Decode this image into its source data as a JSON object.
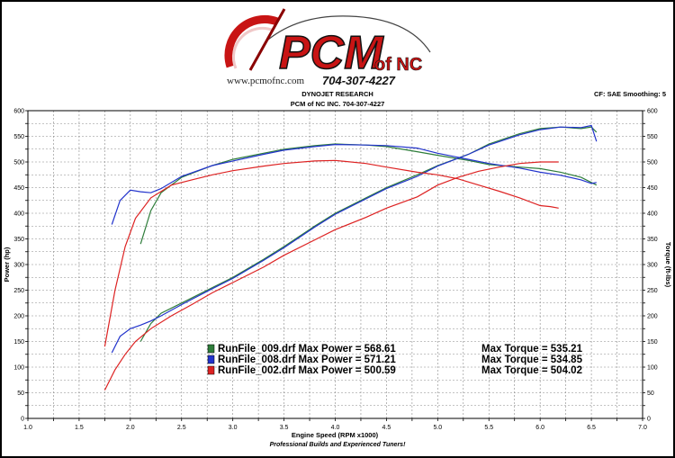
{
  "logo": {
    "wordmark": "PCM",
    "suffix": "of NC",
    "phone": "704-307-4227",
    "url": "www.pcmofnc.com"
  },
  "header": {
    "line1": "DYNOJET RESEARCH",
    "line2": "PCM of NC INC. 704-307-4227",
    "settings": "CF: SAE  Smoothing: 5"
  },
  "footer": "Professional Builds and Experienced Tuners!",
  "colors": {
    "run009": "#2e7d3a",
    "run008": "#2233cc",
    "run002": "#dd2222"
  },
  "chart_data": {
    "type": "line",
    "xlabel": "Engine Speed (RPM x1000)",
    "ylabel_left": "Power (hp)",
    "ylabel_right": "Torque (ft-lbs)",
    "xlim": [
      1.0,
      7.0
    ],
    "ylim": [
      0,
      600
    ],
    "x_ticks": [
      "1.0",
      "1.5",
      "2.0",
      "2.5",
      "3.0",
      "3.5",
      "4.0",
      "4.5",
      "5.0",
      "5.5",
      "6.0",
      "6.5",
      "7.0"
    ],
    "y_ticks": [
      "0",
      "50",
      "100",
      "150",
      "200",
      "250",
      "300",
      "350",
      "400",
      "450",
      "500",
      "550",
      "600"
    ],
    "grid": true,
    "legend": [
      {
        "label": "RunFile_009.drf Max Power = 568.61",
        "torque": "Max Torque = 535.21",
        "color": "#2e7d3a"
      },
      {
        "label": "RunFile_008.drf Max Power = 571.21",
        "torque": "Max Torque = 534.85",
        "color": "#2233cc"
      },
      {
        "label": "RunFile_002.drf Max Power = 500.59",
        "torque": "Max Torque = 504.02",
        "color": "#dd2222"
      }
    ],
    "series": [
      {
        "name": "RunFile_009.drf power",
        "color": "#2e7d3a",
        "x": [
          2.1,
          2.2,
          2.3,
          2.5,
          2.8,
          3.0,
          3.3,
          3.5,
          3.8,
          4.0,
          4.3,
          4.5,
          4.8,
          5.0,
          5.3,
          5.5,
          5.8,
          6.0,
          6.2,
          6.4,
          6.5,
          6.55
        ],
        "y": [
          150,
          185,
          205,
          225,
          255,
          275,
          310,
          335,
          375,
          400,
          430,
          450,
          475,
          493,
          515,
          535,
          555,
          565,
          568,
          565,
          568,
          558
        ]
      },
      {
        "name": "RunFile_009.drf torque",
        "color": "#2e7d3a",
        "x": [
          2.1,
          2.2,
          2.3,
          2.5,
          2.8,
          3.0,
          3.3,
          3.5,
          3.8,
          4.0,
          4.3,
          4.5,
          4.8,
          5.0,
          5.3,
          5.5,
          5.8,
          6.0,
          6.2,
          6.4,
          6.5,
          6.55
        ],
        "y": [
          340,
          405,
          440,
          470,
          493,
          505,
          517,
          525,
          532,
          535,
          533,
          530,
          520,
          513,
          503,
          495,
          490,
          487,
          480,
          470,
          460,
          455
        ]
      },
      {
        "name": "RunFile_008.drf power",
        "color": "#2233cc",
        "x": [
          1.82,
          1.9,
          2.0,
          2.1,
          2.2,
          2.3,
          2.5,
          2.8,
          3.0,
          3.3,
          3.5,
          3.8,
          4.0,
          4.3,
          4.5,
          4.8,
          5.0,
          5.3,
          5.5,
          5.8,
          6.0,
          6.2,
          6.4,
          6.5,
          6.55
        ],
        "y": [
          128,
          160,
          175,
          182,
          190,
          200,
          222,
          253,
          273,
          308,
          333,
          373,
          398,
          428,
          448,
          472,
          492,
          515,
          533,
          553,
          563,
          568,
          567,
          571,
          540
        ]
      },
      {
        "name": "RunFile_008.drf torque",
        "color": "#2233cc",
        "x": [
          1.82,
          1.9,
          2.0,
          2.1,
          2.2,
          2.3,
          2.5,
          2.8,
          3.0,
          3.3,
          3.5,
          3.8,
          4.0,
          4.3,
          4.5,
          4.8,
          5.0,
          5.3,
          5.5,
          5.8,
          6.0,
          6.2,
          6.4,
          6.5,
          6.55
        ],
        "y": [
          378,
          425,
          445,
          442,
          440,
          448,
          472,
          493,
          502,
          515,
          523,
          530,
          534,
          533,
          532,
          527,
          517,
          505,
          497,
          488,
          480,
          474,
          465,
          458,
          460
        ]
      },
      {
        "name": "RunFile_002.drf power",
        "color": "#dd2222",
        "x": [
          1.75,
          1.85,
          1.95,
          2.05,
          2.2,
          2.4,
          2.6,
          2.8,
          3.0,
          3.3,
          3.5,
          3.8,
          4.0,
          4.3,
          4.5,
          4.8,
          5.0,
          5.2,
          5.4,
          5.6,
          5.8,
          6.0,
          6.1,
          6.18
        ],
        "y": [
          55,
          95,
          125,
          150,
          175,
          200,
          222,
          245,
          265,
          295,
          318,
          348,
          368,
          392,
          410,
          432,
          455,
          470,
          482,
          490,
          497,
          500,
          500,
          500
        ]
      },
      {
        "name": "RunFile_002.drf torque",
        "color": "#dd2222",
        "x": [
          1.75,
          1.85,
          1.95,
          2.05,
          2.2,
          2.4,
          2.6,
          2.8,
          3.0,
          3.3,
          3.5,
          3.8,
          4.0,
          4.3,
          4.5,
          4.8,
          5.0,
          5.2,
          5.4,
          5.6,
          5.8,
          6.0,
          6.1,
          6.18
        ],
        "y": [
          140,
          250,
          335,
          390,
          430,
          455,
          465,
          475,
          483,
          492,
          497,
          502,
          503,
          497,
          490,
          480,
          475,
          467,
          455,
          443,
          430,
          415,
          413,
          410
        ]
      }
    ]
  }
}
